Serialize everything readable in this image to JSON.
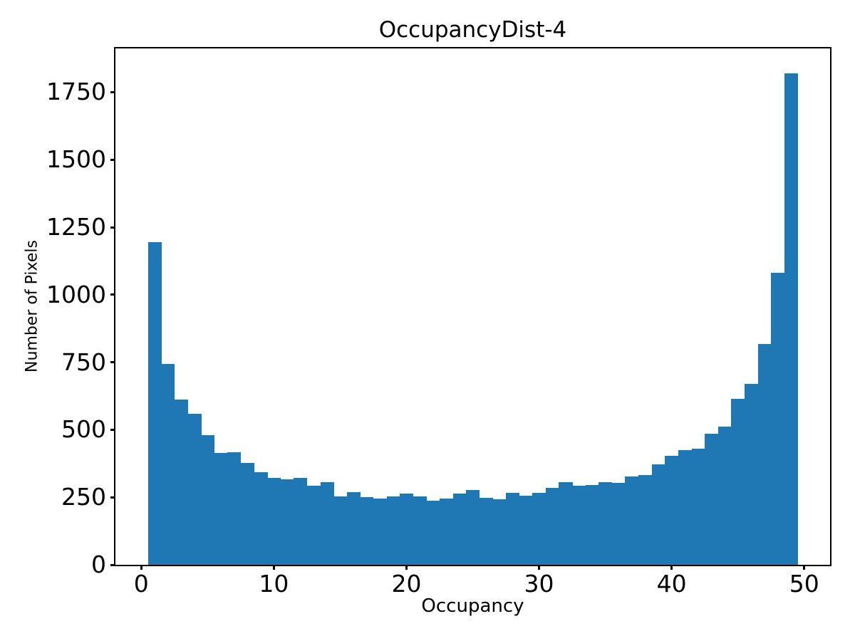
{
  "chart_data": {
    "type": "bar",
    "subtype": "histogram",
    "title": "OccupancyDist-4",
    "xlabel": "Occupancy",
    "ylabel": "Number of Pixels",
    "bin_start": 0.5,
    "bin_width": 1,
    "bin_centers": [
      1,
      2,
      3,
      4,
      5,
      6,
      7,
      8,
      9,
      10,
      11,
      12,
      13,
      14,
      15,
      16,
      17,
      18,
      19,
      20,
      21,
      22,
      23,
      24,
      25,
      26,
      27,
      28,
      29,
      30,
      31,
      32,
      33,
      34,
      35,
      36,
      37,
      38,
      39,
      40,
      41,
      42,
      43,
      44,
      45,
      46,
      47,
      48,
      49
    ],
    "values": [
      1195,
      744,
      613,
      560,
      481,
      414,
      418,
      378,
      343,
      322,
      317,
      321,
      294,
      306,
      253,
      269,
      250,
      246,
      253,
      263,
      253,
      237,
      244,
      263,
      277,
      248,
      242,
      267,
      256,
      266,
      286,
      305,
      292,
      296,
      306,
      303,
      327,
      333,
      372,
      403,
      424,
      430,
      485,
      511,
      615,
      669,
      818,
      1081,
      1821
    ],
    "xlim": [
      -1.95,
      51.95
    ],
    "ylim": [
      0,
      1912
    ],
    "xticks": [
      0,
      10,
      20,
      30,
      40,
      50
    ],
    "yticks": [
      0,
      250,
      500,
      750,
      1000,
      1250,
      1500,
      1750
    ],
    "grid": false,
    "legend_position": "none",
    "bar_color": "#1f77b4",
    "axis_color": "#000000",
    "background_color": "#ffffff"
  }
}
